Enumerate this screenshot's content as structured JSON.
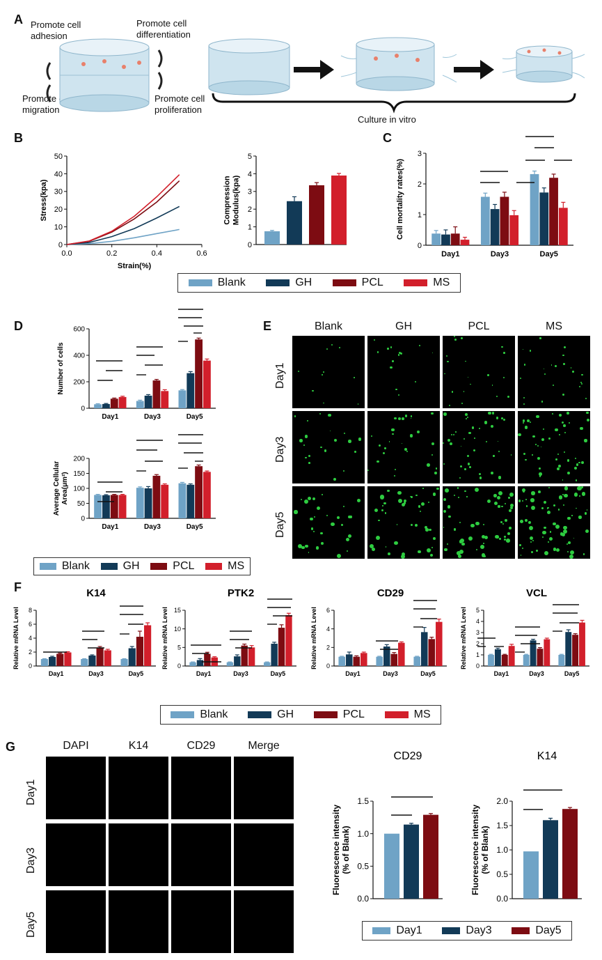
{
  "colors": {
    "blank": "#6fa3c6",
    "gh": "#123a57",
    "pcl": "#7d0c12",
    "ms": "#d21f2b"
  },
  "panel_letters": {
    "A": "A",
    "B": "B",
    "C": "C",
    "D": "D",
    "E": "E",
    "F": "F",
    "G": "G"
  },
  "panel_a": {
    "promote_adhesion": "Promote cell adhesion",
    "promote_differentiation": "Promote cell differentiation",
    "promote_migration": "Promote cell migration",
    "promote_proliferation": "Promote cell proliferation",
    "culture": "Culture in vitro"
  },
  "legend4": [
    "Blank",
    "GH",
    "PCL",
    "MS"
  ],
  "legend_days": [
    "Day1",
    "Day3",
    "Day5"
  ],
  "panel_e": {
    "columns": [
      "Blank",
      "GH",
      "PCL",
      "MS"
    ],
    "rows": [
      "Day1",
      "Day3",
      "Day5"
    ]
  },
  "panel_g": {
    "columns": [
      "DAPI",
      "K14",
      "CD29",
      "Merge"
    ],
    "rows": [
      "Day1",
      "Day3",
      "Day5"
    ]
  },
  "chart_data": [
    {
      "id": "B1",
      "type": "line",
      "xlabel": "Strain(%)",
      "ylabel": "Stress(kpa)",
      "xlim": [
        0,
        0.6
      ],
      "ylim": [
        0,
        50
      ],
      "xticks": [
        "0.0",
        "0.2",
        "0.4",
        "0.6"
      ],
      "yticks": [
        "0",
        "10",
        "20",
        "30",
        "40",
        "50"
      ],
      "series": [
        {
          "name": "Blank",
          "x": [
            0,
            0.1,
            0.2,
            0.3,
            0.4,
            0.5
          ],
          "y": [
            0,
            0.5,
            1.8,
            3.8,
            6.2,
            8.5
          ]
        },
        {
          "name": "GH",
          "x": [
            0,
            0.1,
            0.2,
            0.3,
            0.4,
            0.5
          ],
          "y": [
            0,
            1.2,
            4.5,
            9,
            15,
            21.5
          ]
        },
        {
          "name": "PCL",
          "x": [
            0,
            0.1,
            0.2,
            0.3,
            0.4,
            0.5
          ],
          "y": [
            0,
            1.8,
            7,
            14.5,
            24,
            36
          ]
        },
        {
          "name": "MS",
          "x": [
            0,
            0.1,
            0.2,
            0.3,
            0.4,
            0.5
          ],
          "y": [
            0,
            2,
            7.5,
            16,
            27,
            39.5
          ]
        }
      ]
    },
    {
      "id": "B2",
      "type": "bar",
      "ylabel": "Compression Modulus(kpa)",
      "ylim": [
        0,
        5
      ],
      "yticks": [
        "0",
        "1",
        "2",
        "3",
        "4",
        "5"
      ],
      "series": [
        {
          "name": "Blank",
          "values": [
            0.75
          ]
        },
        {
          "name": "GH",
          "values": [
            2.45
          ]
        },
        {
          "name": "PCL",
          "values": [
            3.35
          ]
        },
        {
          "name": "MS",
          "values": [
            3.9
          ]
        }
      ],
      "errors": [
        [
          0.05
        ],
        [
          0.25
        ],
        [
          0.15
        ],
        [
          0.12
        ]
      ]
    },
    {
      "id": "C",
      "type": "bar",
      "ylabel": "Cell mortality rates(%)",
      "ylim": [
        0,
        3
      ],
      "yticks": [
        "0",
        "1",
        "2",
        "3"
      ],
      "categories": [
        "Day1",
        "Day3",
        "Day5"
      ],
      "series": [
        {
          "name": "Blank",
          "values": [
            0.38,
            1.58,
            2.32
          ]
        },
        {
          "name": "GH",
          "values": [
            0.35,
            1.18,
            1.72
          ]
        },
        {
          "name": "PCL",
          "values": [
            0.38,
            1.58,
            2.2
          ]
        },
        {
          "name": "MS",
          "values": [
            0.18,
            0.98,
            1.22
          ]
        }
      ],
      "errors": [
        [
          0.1,
          0.12,
          0.1
        ],
        [
          0.15,
          0.15,
          0.15
        ],
        [
          0.22,
          0.15,
          0.12
        ],
        [
          0.08,
          0.15,
          0.18
        ]
      ]
    },
    {
      "id": "D1",
      "type": "bar",
      "ylabel": "Number of cells",
      "ylim": [
        0,
        600
      ],
      "yticks": [
        "0",
        "200",
        "400",
        "600"
      ],
      "categories": [
        "Day1",
        "Day3",
        "Day5"
      ],
      "series": [
        {
          "name": "Blank",
          "values": [
            30,
            55,
            135
          ]
        },
        {
          "name": "GH",
          "values": [
            32,
            95,
            265
          ]
        },
        {
          "name": "PCL",
          "values": [
            72,
            210,
            520
          ]
        },
        {
          "name": "MS",
          "values": [
            85,
            130,
            360
          ]
        }
      ],
      "errors": [
        [
          4,
          6,
          6
        ],
        [
          4,
          8,
          12
        ],
        [
          5,
          8,
          10
        ],
        [
          6,
          10,
          12
        ]
      ]
    },
    {
      "id": "D2",
      "type": "bar",
      "ylabel": "Average Cellular Area(μm²)",
      "ylim": [
        0,
        200
      ],
      "yticks": [
        "0",
        "50",
        "100",
        "150",
        "200"
      ],
      "categories": [
        "Day1",
        "Day3",
        "Day5"
      ],
      "series": [
        {
          "name": "Blank",
          "values": [
            78,
            102,
            117
          ]
        },
        {
          "name": "GH",
          "values": [
            77,
            100,
            112
          ]
        },
        {
          "name": "PCL",
          "values": [
            78,
            142,
            174
          ]
        },
        {
          "name": "MS",
          "values": [
            78,
            112,
            155
          ]
        }
      ],
      "errors": [
        [
          2,
          3,
          3
        ],
        [
          2,
          6,
          3
        ],
        [
          2,
          4,
          4
        ],
        [
          2,
          3,
          3
        ]
      ]
    },
    {
      "id": "F1",
      "type": "bar",
      "title": "K14",
      "ylabel": "Relative mRNA Level",
      "ylim": [
        0,
        8
      ],
      "yticks": [
        "0",
        "2",
        "4",
        "6",
        "8"
      ],
      "categories": [
        "Day1",
        "Day3",
        "Day5"
      ],
      "series": [
        {
          "name": "Blank",
          "values": [
            1,
            1,
            1
          ]
        },
        {
          "name": "GH",
          "values": [
            1.3,
            1.5,
            2.55
          ]
        },
        {
          "name": "PCL",
          "values": [
            1.75,
            2.6,
            4.2
          ]
        },
        {
          "name": "MS",
          "values": [
            1.95,
            2.25,
            5.85
          ]
        }
      ],
      "errors": [
        [
          0.05,
          0.05,
          0.05
        ],
        [
          0.1,
          0.1,
          0.25
        ],
        [
          0.1,
          0.2,
          0.8
        ],
        [
          0.1,
          0.15,
          0.35
        ]
      ]
    },
    {
      "id": "F2",
      "type": "bar",
      "title": "PTK2",
      "ylabel": "Relative mRNA Level",
      "ylim": [
        0,
        15
      ],
      "yticks": [
        "0",
        "5",
        "10",
        "15"
      ],
      "categories": [
        "Day1",
        "Day3",
        "Day5"
      ],
      "series": [
        {
          "name": "Blank",
          "values": [
            1,
            1,
            1
          ]
        },
        {
          "name": "GH",
          "values": [
            1.6,
            2.6,
            6
          ]
        },
        {
          "name": "PCL",
          "values": [
            3.3,
            5.5,
            10.3
          ]
        },
        {
          "name": "MS",
          "values": [
            2.3,
            5,
            13.7
          ]
        }
      ],
      "errors": [
        [
          0.1,
          0.1,
          0.1
        ],
        [
          0.4,
          0.4,
          0.4
        ],
        [
          0.4,
          0.4,
          0.8
        ],
        [
          0.2,
          0.5,
          0.5
        ]
      ]
    },
    {
      "id": "F3",
      "type": "bar",
      "title": "CD29",
      "ylabel": "Relative mRNA Level",
      "ylim": [
        0,
        6
      ],
      "yticks": [
        "0",
        "2",
        "4",
        "6"
      ],
      "categories": [
        "Day1",
        "Day3",
        "Day5"
      ],
      "series": [
        {
          "name": "Blank",
          "values": [
            1,
            1,
            1
          ]
        },
        {
          "name": "GH",
          "values": [
            1.25,
            2.1,
            3.65
          ]
        },
        {
          "name": "PCL",
          "values": [
            1,
            1.3,
            2.9
          ]
        },
        {
          "name": "MS",
          "values": [
            1.4,
            2.5,
            4.75
          ]
        }
      ],
      "errors": [
        [
          0.05,
          0.05,
          0.05
        ],
        [
          0.25,
          0.2,
          0.5
        ],
        [
          0.1,
          0.15,
          0.2
        ],
        [
          0.1,
          0.1,
          0.3
        ]
      ]
    },
    {
      "id": "F4",
      "type": "bar",
      "title": "VCL",
      "ylabel": "Relative mRNA Level",
      "ylim": [
        0,
        5
      ],
      "yticks": [
        "0",
        "1",
        "2",
        "3",
        "4",
        "5"
      ],
      "categories": [
        "Day1",
        "Day3",
        "Day5"
      ],
      "series": [
        {
          "name": "Blank",
          "values": [
            1,
            1,
            1
          ]
        },
        {
          "name": "GH",
          "values": [
            1.5,
            2.3,
            3.05
          ]
        },
        {
          "name": "PCL",
          "values": [
            1,
            1.55,
            2.8
          ]
        },
        {
          "name": "MS",
          "values": [
            1.8,
            2.4,
            3.9
          ]
        }
      ],
      "errors": [
        [
          0.05,
          0.05,
          0.05
        ],
        [
          0.1,
          0.1,
          0.2
        ],
        [
          0.05,
          0.1,
          0.1
        ],
        [
          0.15,
          0.1,
          0.2
        ]
      ]
    },
    {
      "id": "G1",
      "type": "bar",
      "title": "CD29",
      "ylabel": "Fluorescence intensity (% of Blank)",
      "ylim": [
        0,
        1.5
      ],
      "yticks": [
        "0.0",
        "0.5",
        "1.0",
        "1.5"
      ],
      "series": [
        {
          "name": "Day1",
          "values": [
            1.0
          ]
        },
        {
          "name": "Day3",
          "values": [
            1.14
          ]
        },
        {
          "name": "Day5",
          "values": [
            1.29
          ]
        }
      ],
      "errors": [
        [
          0
        ],
        [
          0.02
        ],
        [
          0.02
        ]
      ]
    },
    {
      "id": "G2",
      "type": "bar",
      "title": "K14",
      "ylabel": "Fluorescence intensity (% of Blank)",
      "ylim": [
        0,
        2.0
      ],
      "yticks": [
        "0.0",
        "0.5",
        "1.0",
        "1.5",
        "2.0"
      ],
      "series": [
        {
          "name": "Day1",
          "values": [
            0.97
          ]
        },
        {
          "name": "Day3",
          "values": [
            1.61
          ]
        },
        {
          "name": "Day5",
          "values": [
            1.84
          ]
        }
      ],
      "errors": [
        [
          0
        ],
        [
          0.04
        ],
        [
          0.03
        ]
      ]
    }
  ]
}
